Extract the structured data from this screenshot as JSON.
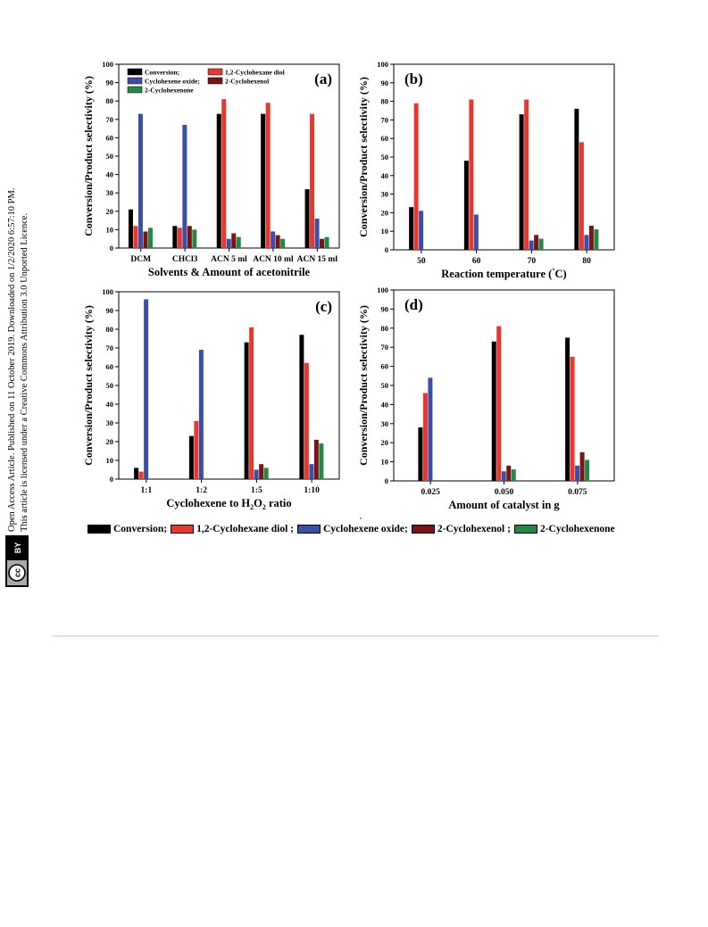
{
  "side_note": {
    "line1": "Open Access Article. Published on 11 October 2019. Downloaded on 1/2/2020 6:57:10 PM.",
    "line2": "This article is licensed under a Creative Commons Attribution 3.0 Unported Licence.",
    "badge_cc": "cc",
    "badge_by": "BY"
  },
  "colors": {
    "Conversion": "#000000",
    "1,2-Cyclohexane diol": "#e8372f",
    "Cyclohexene oxide": "#3a4fa8",
    "2-Cyclohexenol": "#7a1416",
    "2-Cyclohexenone": "#1f8a44"
  },
  "bottom_legend": [
    {
      "label": "Conversion;",
      "series": "Conversion"
    },
    {
      "label": "1,2-Cyclohexane diol ;",
      "series": "1,2-Cyclohexane diol"
    },
    {
      "label": "Cyclohexene oxide;",
      "series": "Cyclohexene oxide"
    },
    {
      "label": "2-Cyclohexenol ;",
      "series": "2-Cyclohexenol"
    },
    {
      "label": "2-Cyclohexenone",
      "series": "2-Cyclohexenone"
    }
  ],
  "chart_data": [
    {
      "type": "bar",
      "panel_label": "(a)",
      "categories": [
        "DCM",
        "CHCl3",
        "ACN 5 ml",
        "ACN 10 ml",
        "ACN 15 ml"
      ],
      "xlabel": "Solvents & Amount of acetonitrile",
      "ylabel": "Conversion/Product selectivity (%)",
      "ylim": [
        0,
        100
      ],
      "yticks": [
        0,
        10,
        20,
        30,
        40,
        50,
        60,
        70,
        80,
        90,
        100
      ],
      "legend_placement": "top-left",
      "inner_legend": [
        [
          "Conversion;",
          "1,2-Cyclohexane diol"
        ],
        [
          "Cyclohexene oxide;",
          "2-Cyclohexenol"
        ],
        [
          "2-Cyclohexenone"
        ]
      ],
      "series": [
        {
          "name": "Conversion",
          "values": [
            21,
            12,
            73,
            73,
            32
          ]
        },
        {
          "name": "1,2-Cyclohexane diol",
          "values": [
            12,
            11,
            81,
            79,
            73
          ]
        },
        {
          "name": "Cyclohexene oxide",
          "values": [
            73,
            67,
            5,
            9,
            16
          ]
        },
        {
          "name": "2-Cyclohexenol",
          "values": [
            9,
            12,
            8,
            7,
            5
          ]
        },
        {
          "name": "2-Cyclohexenone",
          "values": [
            11,
            10,
            6,
            5,
            6
          ]
        }
      ]
    },
    {
      "type": "bar",
      "panel_label": "(b)",
      "categories": [
        "50",
        "60",
        "70",
        "80"
      ],
      "xlabel": "Reaction temperature (°C)",
      "ylabel": "Conversion/Product selectivity (%)",
      "ylim": [
        0,
        100
      ],
      "yticks": [
        0,
        10,
        20,
        30,
        40,
        50,
        60,
        70,
        80,
        90,
        100
      ],
      "series": [
        {
          "name": "Conversion",
          "values": [
            23,
            48,
            73,
            76
          ]
        },
        {
          "name": "1,2-Cyclohexane diol",
          "values": [
            79,
            81,
            81,
            58
          ]
        },
        {
          "name": "Cyclohexene oxide",
          "values": [
            21,
            19,
            5,
            8
          ]
        },
        {
          "name": "2-Cyclohexenol",
          "values": [
            null,
            null,
            8,
            13
          ]
        },
        {
          "name": "2-Cyclohexenone",
          "values": [
            null,
            null,
            6,
            11
          ]
        }
      ]
    },
    {
      "type": "bar",
      "panel_label": "(c)",
      "categories": [
        "1:1",
        "1:2",
        "1:5",
        "1:10"
      ],
      "xlabel": "Cyclohexene to H2O2 ratio",
      "ylabel": "Conversion/Product selectivity (%)",
      "ylim": [
        0,
        100
      ],
      "yticks": [
        0,
        10,
        20,
        30,
        40,
        50,
        60,
        70,
        80,
        90,
        100
      ],
      "series": [
        {
          "name": "Conversion",
          "values": [
            6,
            23,
            73,
            77
          ]
        },
        {
          "name": "1,2-Cyclohexane diol",
          "values": [
            4,
            31,
            81,
            62
          ]
        },
        {
          "name": "Cyclohexene oxide",
          "values": [
            96,
            69,
            5,
            8
          ]
        },
        {
          "name": "2-Cyclohexenol",
          "values": [
            null,
            null,
            8,
            21
          ]
        },
        {
          "name": "2-Cyclohexenone",
          "values": [
            null,
            null,
            6,
            19
          ]
        }
      ]
    },
    {
      "type": "bar",
      "panel_label": "(d)",
      "categories": [
        "0.025",
        "0.050",
        "0.075"
      ],
      "xlabel": "Amount of catalyst in g",
      "ylabel": "Conversion/Product selectivity (%)",
      "ylim": [
        0,
        100
      ],
      "yticks": [
        0,
        10,
        20,
        30,
        40,
        50,
        60,
        70,
        80,
        90,
        100
      ],
      "series": [
        {
          "name": "Conversion",
          "values": [
            28,
            73,
            75
          ]
        },
        {
          "name": "1,2-Cyclohexane diol",
          "values": [
            46,
            81,
            65
          ]
        },
        {
          "name": "Cyclohexene oxide",
          "values": [
            54,
            5,
            8
          ]
        },
        {
          "name": "2-Cyclohexenol",
          "values": [
            null,
            8,
            15
          ]
        },
        {
          "name": "2-Cyclohexenone",
          "values": [
            null,
            6,
            11
          ]
        }
      ]
    }
  ]
}
